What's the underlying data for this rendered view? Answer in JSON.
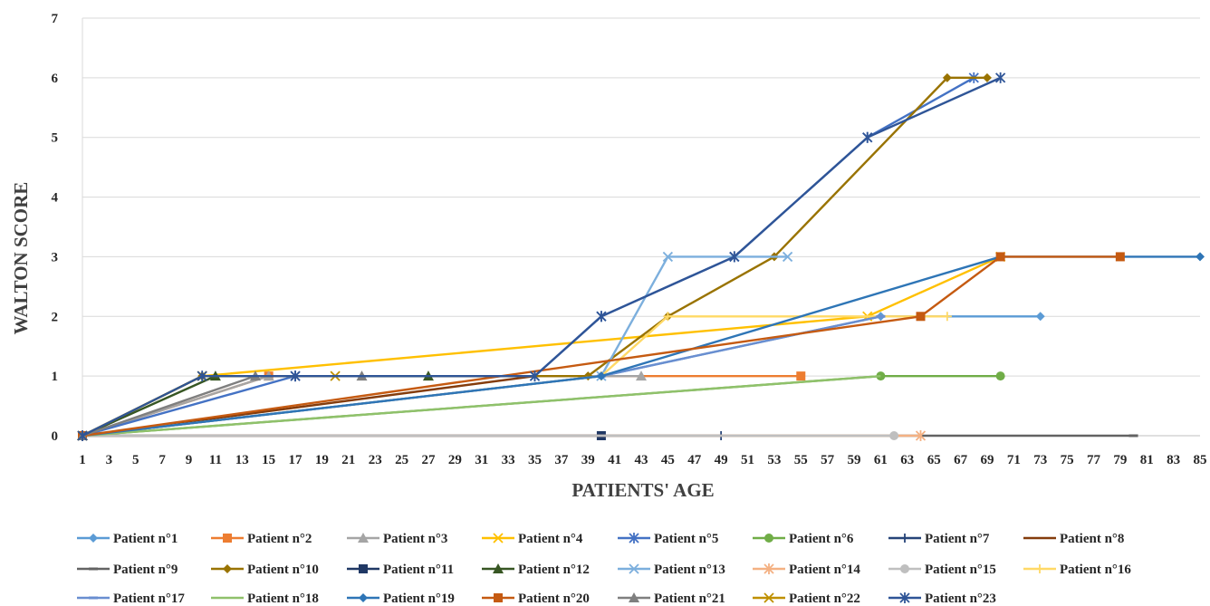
{
  "chart_data": {
    "type": "line",
    "xlabel": "PATIENTS' AGE",
    "ylabel": "WALTON SCORE",
    "xlim": [
      1,
      85
    ],
    "ylim": [
      0,
      7
    ],
    "x_ticks": [
      1,
      3,
      5,
      7,
      9,
      11,
      13,
      15,
      17,
      19,
      21,
      23,
      25,
      27,
      29,
      31,
      33,
      35,
      37,
      39,
      41,
      43,
      45,
      47,
      49,
      51,
      53,
      55,
      57,
      59,
      61,
      63,
      65,
      67,
      69,
      71,
      73,
      75,
      77,
      79,
      81,
      83,
      85
    ],
    "y_ticks": [
      0,
      1,
      2,
      3,
      4,
      5,
      6,
      7
    ],
    "grid": "horizontal",
    "legend_position": "bottom",
    "series": [
      {
        "name": "Patient n°1",
        "color": "#5B9BD5",
        "marker": "diamond",
        "points": [
          [
            1,
            0
          ],
          [
            40,
            1
          ],
          [
            61,
            2
          ],
          [
            73,
            2
          ]
        ]
      },
      {
        "name": "Patient n°2",
        "color": "#ED7D31",
        "marker": "square",
        "points": [
          [
            1,
            0
          ],
          [
            15,
            1
          ],
          [
            55,
            1
          ]
        ]
      },
      {
        "name": "Patient n°3",
        "color": "#A5A5A5",
        "marker": "triangle",
        "points": [
          [
            1,
            0
          ],
          [
            15,
            1
          ],
          [
            43,
            1
          ]
        ]
      },
      {
        "name": "Patient n°4",
        "color": "#FFC000",
        "marker": "x",
        "points": [
          [
            1,
            0
          ],
          [
            10,
            1
          ],
          [
            60,
            2
          ],
          [
            70,
            3
          ]
        ]
      },
      {
        "name": "Patient n°5",
        "color": "#4472C4",
        "marker": "asterisk",
        "points": [
          [
            1,
            0
          ],
          [
            17,
            1
          ],
          [
            35,
            1
          ],
          [
            40,
            2
          ],
          [
            50,
            3
          ],
          [
            60,
            5
          ],
          [
            68,
            6
          ]
        ]
      },
      {
        "name": "Patient n°6",
        "color": "#70AD47",
        "marker": "circle",
        "points": [
          [
            1,
            0
          ],
          [
            61,
            1
          ],
          [
            70,
            1
          ]
        ]
      },
      {
        "name": "Patient n°7",
        "color": "#264478",
        "marker": "plus",
        "points": [
          [
            1,
            0
          ],
          [
            49,
            0
          ]
        ]
      },
      {
        "name": "Patient n°8",
        "color": "#843C0C",
        "marker": "none",
        "points": [
          [
            1,
            0
          ],
          [
            35,
            1
          ]
        ]
      },
      {
        "name": "Patient n°9",
        "color": "#636363",
        "marker": "dash",
        "points": [
          [
            1,
            0
          ],
          [
            80,
            0
          ]
        ]
      },
      {
        "name": "Patient n°10",
        "color": "#997300",
        "marker": "diamond",
        "points": [
          [
            1,
            0
          ],
          [
            10,
            1
          ],
          [
            39,
            1
          ],
          [
            45,
            2
          ],
          [
            53,
            3
          ],
          [
            66,
            6
          ],
          [
            69,
            6
          ]
        ]
      },
      {
        "name": "Patient n°11",
        "color": "#203864",
        "marker": "square",
        "points": [
          [
            1,
            0
          ],
          [
            40,
            0
          ]
        ]
      },
      {
        "name": "Patient n°12",
        "color": "#375623",
        "marker": "triangle",
        "points": [
          [
            1,
            0
          ],
          [
            11,
            1
          ],
          [
            27,
            1
          ]
        ]
      },
      {
        "name": "Patient n°13",
        "color": "#7CAFDD",
        "marker": "x",
        "points": [
          [
            1,
            0
          ],
          [
            40,
            1
          ],
          [
            45,
            3
          ],
          [
            54,
            3
          ]
        ]
      },
      {
        "name": "Patient n°14",
        "color": "#F4B183",
        "marker": "asterisk",
        "points": [
          [
            1,
            0
          ],
          [
            64,
            0
          ]
        ]
      },
      {
        "name": "Patient n°15",
        "color": "#BFBFBF",
        "marker": "circle",
        "points": [
          [
            1,
            0
          ],
          [
            62,
            0
          ]
        ]
      },
      {
        "name": "Patient n°16",
        "color": "#FFD966",
        "marker": "plus",
        "points": [
          [
            1,
            0
          ],
          [
            40,
            1
          ],
          [
            45,
            2
          ],
          [
            66,
            2
          ]
        ]
      },
      {
        "name": "Patient n°17",
        "color": "#698ED0",
        "marker": "dash",
        "points": [
          [
            1,
            0
          ],
          [
            40,
            1
          ],
          [
            61,
            2
          ]
        ]
      },
      {
        "name": "Patient n°18",
        "color": "#8FC16B",
        "marker": "none",
        "points": [
          [
            1,
            0
          ],
          [
            61,
            1
          ]
        ]
      },
      {
        "name": "Patient n°19",
        "color": "#2E75B6",
        "marker": "diamond",
        "points": [
          [
            1,
            0
          ],
          [
            40,
            1
          ],
          [
            70,
            3
          ],
          [
            85,
            3
          ]
        ]
      },
      {
        "name": "Patient n°20",
        "color": "#C55A11",
        "marker": "square",
        "points": [
          [
            1,
            0
          ],
          [
            64,
            2
          ],
          [
            70,
            3
          ],
          [
            79,
            3
          ]
        ]
      },
      {
        "name": "Patient n°21",
        "color": "#7F7F7F",
        "marker": "triangle",
        "points": [
          [
            1,
            0
          ],
          [
            14,
            1
          ],
          [
            22,
            1
          ]
        ]
      },
      {
        "name": "Patient n°22",
        "color": "#BF9000",
        "marker": "x",
        "points": [
          [
            1,
            0
          ],
          [
            10,
            1
          ],
          [
            20,
            1
          ]
        ]
      },
      {
        "name": "Patient n°23",
        "color": "#2F5597",
        "marker": "asterisk",
        "points": [
          [
            1,
            0
          ],
          [
            10,
            1
          ],
          [
            17,
            1
          ],
          [
            35,
            1
          ],
          [
            40,
            2
          ],
          [
            50,
            3
          ],
          [
            60,
            5
          ],
          [
            70,
            6
          ]
        ]
      }
    ]
  }
}
